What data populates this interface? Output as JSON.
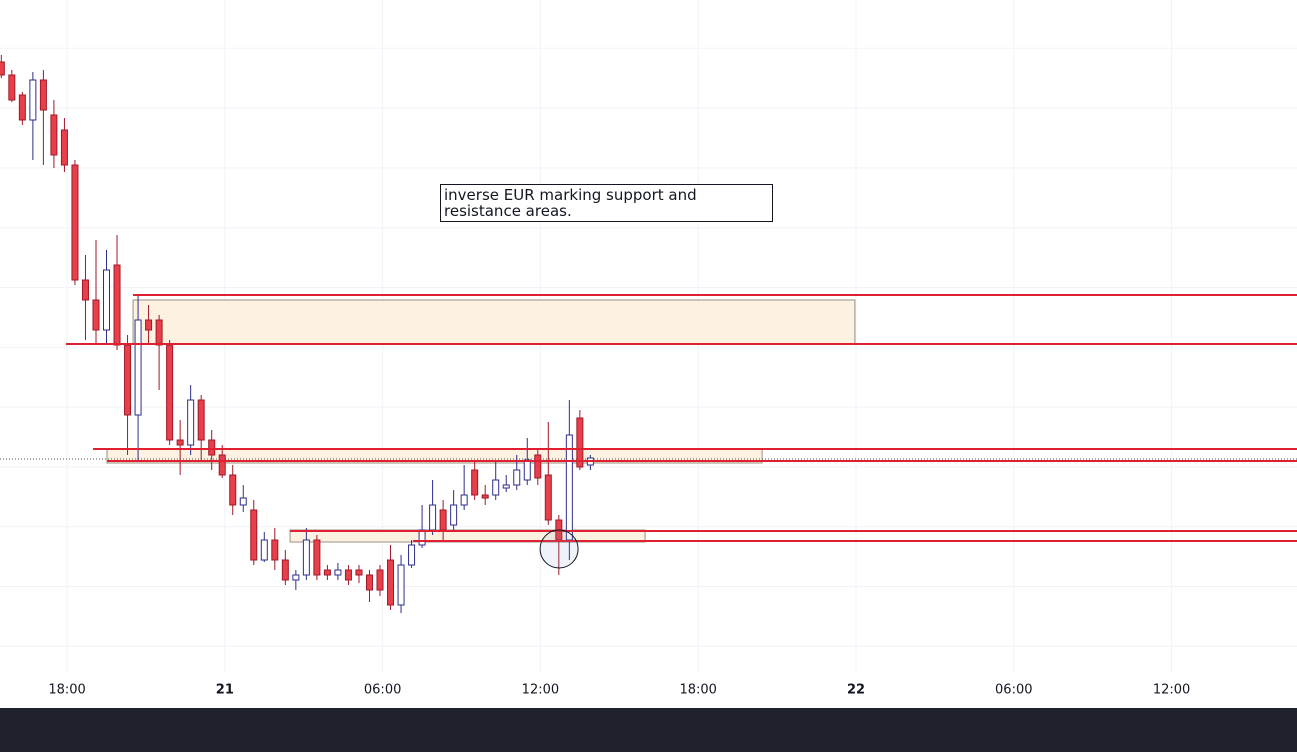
{
  "chart_data": {
    "type": "candlestick",
    "annotation": "inverse EUR marking support and resistance areas.",
    "xlim": [
      15.45,
      64.77
    ],
    "ylim": [
      0,
      708
    ],
    "xticks": [
      {
        "value": 18,
        "label": "18:00"
      },
      {
        "value": 24,
        "label": "21"
      },
      {
        "value": 30,
        "label": "06:00"
      },
      {
        "value": 36,
        "label": "12:00"
      },
      {
        "value": 42,
        "label": "18:00"
      },
      {
        "value": 48,
        "label": "22"
      },
      {
        "value": 54,
        "label": "06:00"
      },
      {
        "value": 60,
        "label": "12:00"
      }
    ],
    "grid": true,
    "up_color": "#2e2e8a",
    "down_color": "#e8404a",
    "x": [
      15.5,
      15.9,
      16.3,
      16.7,
      17.1,
      17.5,
      17.9,
      18.3,
      18.7,
      19.1,
      19.5,
      19.9,
      20.3,
      20.7,
      21.1,
      21.5,
      21.9,
      22.3,
      22.7,
      23.1,
      23.5,
      23.9,
      24.3,
      24.7,
      25.1,
      25.5,
      25.9,
      26.3,
      26.7,
      27.1,
      27.5,
      27.9,
      28.3,
      28.7,
      29.1,
      29.5,
      29.9,
      30.3,
      30.7,
      31.1,
      31.5,
      31.9,
      32.3,
      32.7,
      33.1,
      33.5,
      33.9,
      34.3,
      34.7,
      35.1,
      35.5,
      35.9,
      36.3,
      36.7,
      37.1,
      37.5,
      37.9
    ],
    "open": [
      646,
      633,
      613,
      588,
      628,
      593,
      578,
      543,
      428,
      408,
      378,
      443,
      363,
      293,
      388,
      388,
      363,
      268,
      263,
      308,
      268,
      253,
      233,
      203,
      198,
      148,
      168,
      148,
      128,
      133,
      168,
      138,
      133,
      138,
      138,
      133,
      138,
      148,
      103,
      143,
      163,
      178,
      198,
      183,
      203,
      238,
      213,
      213,
      220,
      223,
      228,
      253,
      233,
      188,
      168,
      290,
      243
    ],
    "high": [
      653,
      638,
      616,
      636,
      638,
      608,
      590,
      548,
      453,
      468,
      458,
      473,
      373,
      413,
      403,
      393,
      368,
      288,
      323,
      313,
      278,
      263,
      243,
      223,
      208,
      176,
      180,
      158,
      138,
      180,
      173,
      143,
      145,
      143,
      143,
      138,
      143,
      163,
      153,
      168,
      203,
      228,
      208,
      218,
      243,
      246,
      223,
      248,
      233,
      253,
      270,
      258,
      286,
      193,
      308,
      298,
      253
    ],
    "low": [
      630,
      606,
      583,
      548,
      543,
      540,
      536,
      423,
      368,
      363,
      363,
      358,
      253,
      248,
      363,
      318,
      263,
      233,
      253,
      248,
      238,
      230,
      193,
      196,
      143,
      146,
      138,
      123,
      118,
      128,
      128,
      128,
      128,
      123,
      125,
      106,
      112,
      98,
      95,
      140,
      160,
      173,
      168,
      176,
      198,
      208,
      203,
      208,
      216,
      218,
      223,
      223,
      183,
      133,
      148,
      238,
      238
    ],
    "close": [
      633,
      608,
      588,
      628,
      598,
      553,
      543,
      428,
      408,
      378,
      438,
      363,
      293,
      388,
      378,
      363,
      268,
      263,
      308,
      268,
      253,
      233,
      203,
      210,
      148,
      168,
      148,
      128,
      133,
      168,
      133,
      133,
      138,
      128,
      133,
      118,
      118,
      103,
      143,
      163,
      178,
      203,
      178,
      203,
      213,
      213,
      210,
      228,
      223,
      238,
      248,
      230,
      188,
      168,
      273,
      241,
      250
    ],
    "levels": [
      {
        "value": 413,
        "start": 20.51,
        "color": "#e02030"
      },
      {
        "value": 364,
        "start": 17.96,
        "color": "#e02030"
      },
      {
        "value": 259,
        "start": 18.99,
        "color": "#e02030"
      },
      {
        "value": 247,
        "start": 19.52,
        "color": "#e02030"
      },
      {
        "value": 177,
        "start": 26.48,
        "color": "#e02030"
      },
      {
        "value": 167,
        "start": 31.16,
        "color": "#e02030"
      }
    ],
    "zones": [
      {
        "x": [
          20.51,
          47.96
        ],
        "y": [
          364,
          408
        ],
        "color": "#fdf1e1"
      },
      {
        "x": [
          19.52,
          44.43
        ],
        "y": [
          245,
          259
        ],
        "color": "#fdf1e1"
      },
      {
        "x": [
          26.48,
          39.98
        ],
        "y": [
          166,
          178
        ],
        "color": "#fdf1e1"
      }
    ],
    "circle": {
      "x": 36.71,
      "y": 159
    },
    "price_line": 249
  }
}
